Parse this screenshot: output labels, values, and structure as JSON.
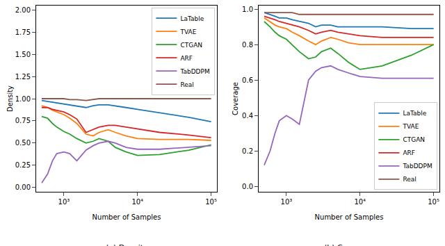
{
  "chart_data": [
    {
      "type": "line",
      "subtitle": "(a) Density",
      "x_label": "Number of Samples",
      "y_label": "Density",
      "log": "x",
      "grid": false,
      "legend": "upper right",
      "xlim": [
        420,
        120000
      ],
      "xticks": [
        {
          "value": 1000,
          "label": "10³"
        },
        {
          "value": 10000,
          "label": "10⁴"
        },
        {
          "value": 100000,
          "label": "10⁵"
        }
      ],
      "ylim": [
        -0.05,
        2.05
      ],
      "yticks": [
        {
          "value": 0,
          "label": "0.00"
        },
        {
          "value": 0.25,
          "label": "0.25"
        },
        {
          "value": 0.5,
          "label": "0.50"
        },
        {
          "value": 0.75,
          "label": "0.75"
        },
        {
          "value": 1,
          "label": "1.00"
        },
        {
          "value": 1.25,
          "label": "1.25"
        },
        {
          "value": 1.5,
          "label": "1.50"
        },
        {
          "value": 1.75,
          "label": "1.75"
        },
        {
          "value": 2,
          "label": "2.00"
        }
      ],
      "x": [
        500,
        600,
        700,
        800,
        1000,
        1200,
        1500,
        2000,
        2500,
        3000,
        4000,
        5000,
        7000,
        10000,
        20000,
        50000,
        100000
      ],
      "series": [
        {
          "name": "LaTable",
          "color": "#1f77b4",
          "values": [
            0.98,
            0.97,
            0.96,
            0.95,
            0.94,
            0.93,
            0.92,
            0.9,
            0.92,
            0.93,
            0.93,
            0.92,
            0.9,
            0.88,
            0.84,
            0.79,
            0.74
          ]
        },
        {
          "name": "TVAE",
          "color": "#ff7f0e",
          "values": [
            0.92,
            0.9,
            0.87,
            0.85,
            0.82,
            0.78,
            0.72,
            0.6,
            0.58,
            0.62,
            0.65,
            0.62,
            0.58,
            0.55,
            0.54,
            0.54,
            0.53
          ]
        },
        {
          "name": "CTGAN",
          "color": "#2ca02c",
          "values": [
            0.8,
            0.78,
            0.72,
            0.68,
            0.63,
            0.6,
            0.55,
            0.5,
            0.52,
            0.55,
            0.52,
            0.45,
            0.4,
            0.36,
            0.37,
            0.42,
            0.48
          ]
        },
        {
          "name": "ARF",
          "color": "#d62728",
          "values": [
            0.9,
            0.9,
            0.88,
            0.87,
            0.85,
            0.82,
            0.77,
            0.62,
            0.65,
            0.68,
            0.7,
            0.7,
            0.68,
            0.66,
            0.62,
            0.59,
            0.56
          ]
        },
        {
          "name": "TabDDPM",
          "color": "#9467bd",
          "values": [
            0.05,
            0.15,
            0.3,
            0.38,
            0.4,
            0.38,
            0.3,
            0.42,
            0.47,
            0.5,
            0.52,
            0.5,
            0.45,
            0.43,
            0.43,
            0.45,
            0.47
          ]
        },
        {
          "name": "Real",
          "color": "#8c564b",
          "values": [
            1.0,
            1.0,
            1.0,
            1.0,
            1.0,
            0.99,
            0.99,
            0.98,
            0.99,
            1.0,
            1.0,
            1.0,
            1.0,
            1.0,
            1.0,
            1.0,
            1.0
          ]
        }
      ]
    },
    {
      "type": "line",
      "subtitle": "(b) Coverage",
      "x_label": "Number of Samples",
      "y_label": "Coverage",
      "log": "x",
      "grid": false,
      "legend": "lower right",
      "xlim": [
        420,
        120000
      ],
      "xticks": [
        {
          "value": 1000,
          "label": "10³"
        },
        {
          "value": 10000,
          "label": "10⁴"
        },
        {
          "value": 100000,
          "label": "10⁵"
        }
      ],
      "ylim": [
        -0.03,
        1.02
      ],
      "yticks": [
        {
          "value": 0,
          "label": "0.0"
        },
        {
          "value": 0.2,
          "label": "0.2"
        },
        {
          "value": 0.4,
          "label": "0.4"
        },
        {
          "value": 0.6,
          "label": "0.6"
        },
        {
          "value": 0.8,
          "label": "0.8"
        },
        {
          "value": 1,
          "label": "1.0"
        }
      ],
      "x": [
        500,
        600,
        700,
        800,
        1000,
        1200,
        1500,
        2000,
        2500,
        3000,
        4000,
        5000,
        7000,
        10000,
        20000,
        50000,
        100000
      ],
      "series": [
        {
          "name": "LaTable",
          "color": "#1f77b4",
          "values": [
            0.98,
            0.97,
            0.96,
            0.95,
            0.95,
            0.94,
            0.93,
            0.92,
            0.9,
            0.91,
            0.91,
            0.9,
            0.9,
            0.9,
            0.9,
            0.89,
            0.89
          ]
        },
        {
          "name": "TVAE",
          "color": "#ff7f0e",
          "values": [
            0.95,
            0.93,
            0.91,
            0.9,
            0.89,
            0.87,
            0.85,
            0.82,
            0.8,
            0.82,
            0.84,
            0.83,
            0.81,
            0.8,
            0.8,
            0.8,
            0.8
          ]
        },
        {
          "name": "CTGAN",
          "color": "#2ca02c",
          "values": [
            0.93,
            0.9,
            0.87,
            0.85,
            0.83,
            0.8,
            0.76,
            0.72,
            0.73,
            0.76,
            0.78,
            0.75,
            0.7,
            0.66,
            0.68,
            0.74,
            0.8
          ]
        },
        {
          "name": "ARF",
          "color": "#d62728",
          "values": [
            0.96,
            0.95,
            0.94,
            0.93,
            0.92,
            0.91,
            0.9,
            0.88,
            0.86,
            0.87,
            0.88,
            0.87,
            0.86,
            0.85,
            0.84,
            0.84,
            0.84
          ]
        },
        {
          "name": "TabDDPM",
          "color": "#9467bd",
          "values": [
            0.12,
            0.2,
            0.3,
            0.37,
            0.4,
            0.38,
            0.35,
            0.6,
            0.65,
            0.67,
            0.68,
            0.66,
            0.64,
            0.62,
            0.61,
            0.61,
            0.61
          ]
        },
        {
          "name": "Real",
          "color": "#8c564b",
          "values": [
            0.98,
            0.98,
            0.98,
            0.98,
            0.98,
            0.98,
            0.97,
            0.97,
            0.97,
            0.97,
            0.97,
            0.97,
            0.97,
            0.97,
            0.97,
            0.97,
            0.97
          ]
        }
      ]
    }
  ]
}
